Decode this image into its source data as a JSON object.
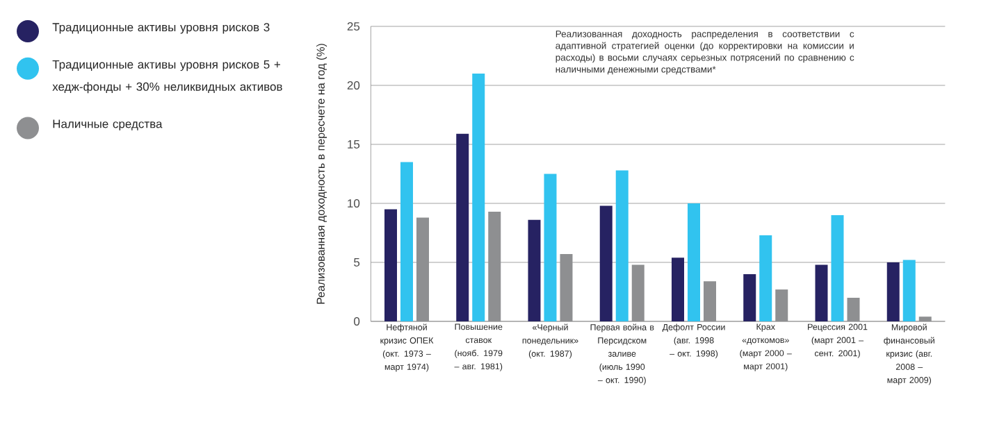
{
  "chart_data": {
    "type": "bar",
    "ylabel": "Реализованная доходность в пересчете на год (%)",
    "annotations": [
      "Реализованная доходность распределения в соответствии с адаптивной стратегией оценки (до корректировки на комиссии и расходы) в восьми случаях серьезных потрясений по сравнению с наличными денежными средствами*"
    ],
    "categories": [
      "Нефтяной кризис ОПЕК (окт. 1973 – март 1974)",
      "Повышение ставок (нояб. 1979 – авг. 1981)",
      "«Черный понедельник» (окт. 1987)",
      "Первая война в Персидском заливе (июль 1990 – окт. 1990)",
      "Дефолт России (авг. 1998 – окт. 1998)",
      "Крах «доткомов» (март 2000 – март 2001)",
      "Рецессия 2001 (март 2001 – сент. 2001)",
      "Мировой финансовый кризис (авг. 2008 – март 2009)"
    ],
    "series": [
      {
        "name": "Традиционные активы уровня рисков 3",
        "color": "#262262",
        "values": [
          9.5,
          15.9,
          8.6,
          9.8,
          5.4,
          4.0,
          4.8,
          5.0
        ]
      },
      {
        "name": "Традиционные активы уровня рисков 5 + хедж-фонды + 30% неликвидных активов",
        "color": "#31c3ef",
        "values": [
          13.5,
          21.0,
          12.5,
          12.8,
          10.0,
          7.3,
          9.0,
          5.2
        ]
      },
      {
        "name": "Наличные средства",
        "color": "#8e8f91",
        "values": [
          8.8,
          9.3,
          5.7,
          4.8,
          3.4,
          2.7,
          2.0,
          0.4
        ]
      }
    ],
    "ylim": [
      0,
      25
    ],
    "yticks": [
      0,
      5,
      10,
      15,
      20,
      25
    ],
    "grid": "y",
    "legend": "top left"
  }
}
